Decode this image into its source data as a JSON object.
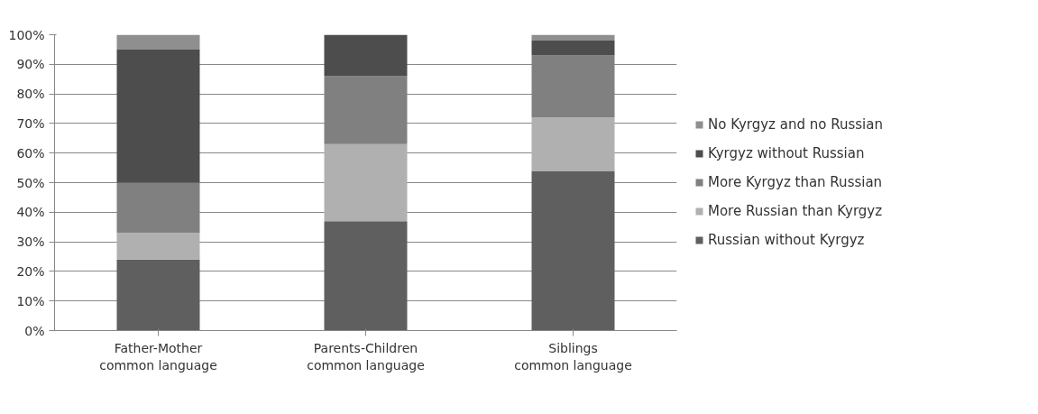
{
  "chart_data": {
    "type": "bar",
    "stacked": true,
    "categories": [
      "Father-Mother common language",
      "Parents-Children common language",
      "Siblings common language"
    ],
    "series": [
      {
        "name": "Russian without Kyrgyz",
        "color": "#5f5f5f",
        "values": [
          24,
          37,
          54
        ]
      },
      {
        "name": "More Russian than Kyrgyz",
        "color": "#b0b0b0",
        "values": [
          9,
          26,
          18
        ]
      },
      {
        "name": "More Kyrgyz than Russian",
        "color": "#808080",
        "values": [
          17,
          23,
          21
        ]
      },
      {
        "name": "Kyrgyz without Russian",
        "color": "#4d4d4d",
        "values": [
          45,
          14,
          5
        ]
      },
      {
        "name": "No Kyrgyz and no Russian",
        "color": "#8f8f8f",
        "values": [
          5,
          0,
          2
        ]
      }
    ],
    "ylim": [
      0,
      100
    ],
    "yticks": [
      {
        "value": 0,
        "label": "0%"
      },
      {
        "value": 10,
        "label": "10%"
      },
      {
        "value": 20,
        "label": "20%"
      },
      {
        "value": 30,
        "label": "30%"
      },
      {
        "value": 40,
        "label": "40%"
      },
      {
        "value": 50,
        "label": "50%"
      },
      {
        "value": 60,
        "label": "60%"
      },
      {
        "value": 70,
        "label": "70%"
      },
      {
        "value": 80,
        "label": "80%"
      },
      {
        "value": 90,
        "label": "90%"
      },
      {
        "value": 100,
        "label": "100%"
      }
    ],
    "grid": "y",
    "legend": "right"
  }
}
